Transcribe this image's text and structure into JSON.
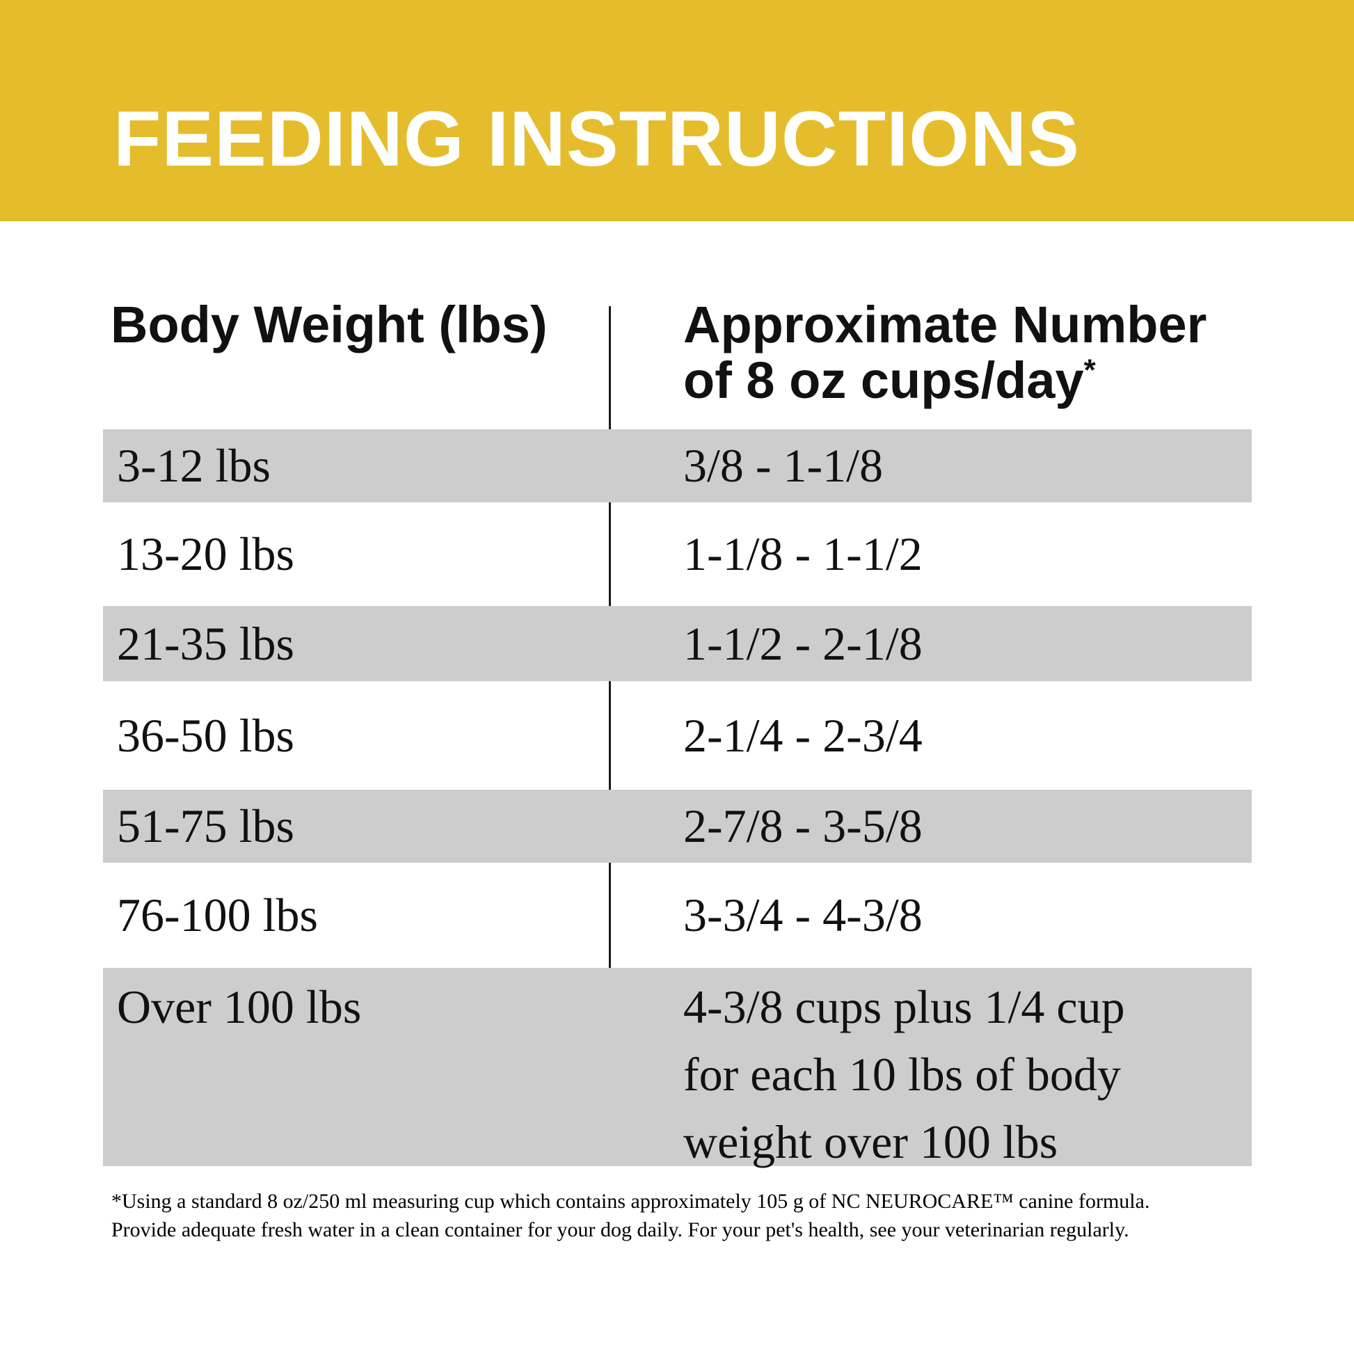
{
  "banner": {
    "title": "FEEDING INSTRUCTIONS",
    "bg_color": "#e5bc2c",
    "text_color": "#ffffff"
  },
  "table": {
    "columns": {
      "col1": "Body Weight (lbs)",
      "col2_line1": "Approximate Number",
      "col2_line2": "of 8 oz cups/day",
      "col2_footnote_marker": "*"
    },
    "shaded_row_color": "#cdcdcd",
    "rows": [
      {
        "weight": "3-12 lbs",
        "cups": "3/8 - 1-1/8"
      },
      {
        "weight": "13-20 lbs",
        "cups": "1-1/8 - 1-1/2"
      },
      {
        "weight": "21-35 lbs",
        "cups": "1-1/2 - 2-1/8"
      },
      {
        "weight": "36-50 lbs",
        "cups": "2-1/4 - 2-3/4"
      },
      {
        "weight": "51-75 lbs",
        "cups": "2-7/8 - 3-5/8"
      },
      {
        "weight": "76-100 lbs",
        "cups": "3-3/4 - 4-3/8"
      },
      {
        "weight": "Over 100 lbs",
        "cups_lines": [
          "4-3/8 cups plus 1/4 cup",
          "for each 10 lbs of body",
          "weight over 100 lbs"
        ]
      }
    ]
  },
  "footnote": {
    "line1": "*Using a standard 8 oz/250 ml measuring cup which contains approximately 105 g of NC NEUROCARE™ canine formula.",
    "line2": "Provide adequate fresh water in a clean container for your dog daily. For your pet's health, see your veterinarian regularly."
  }
}
